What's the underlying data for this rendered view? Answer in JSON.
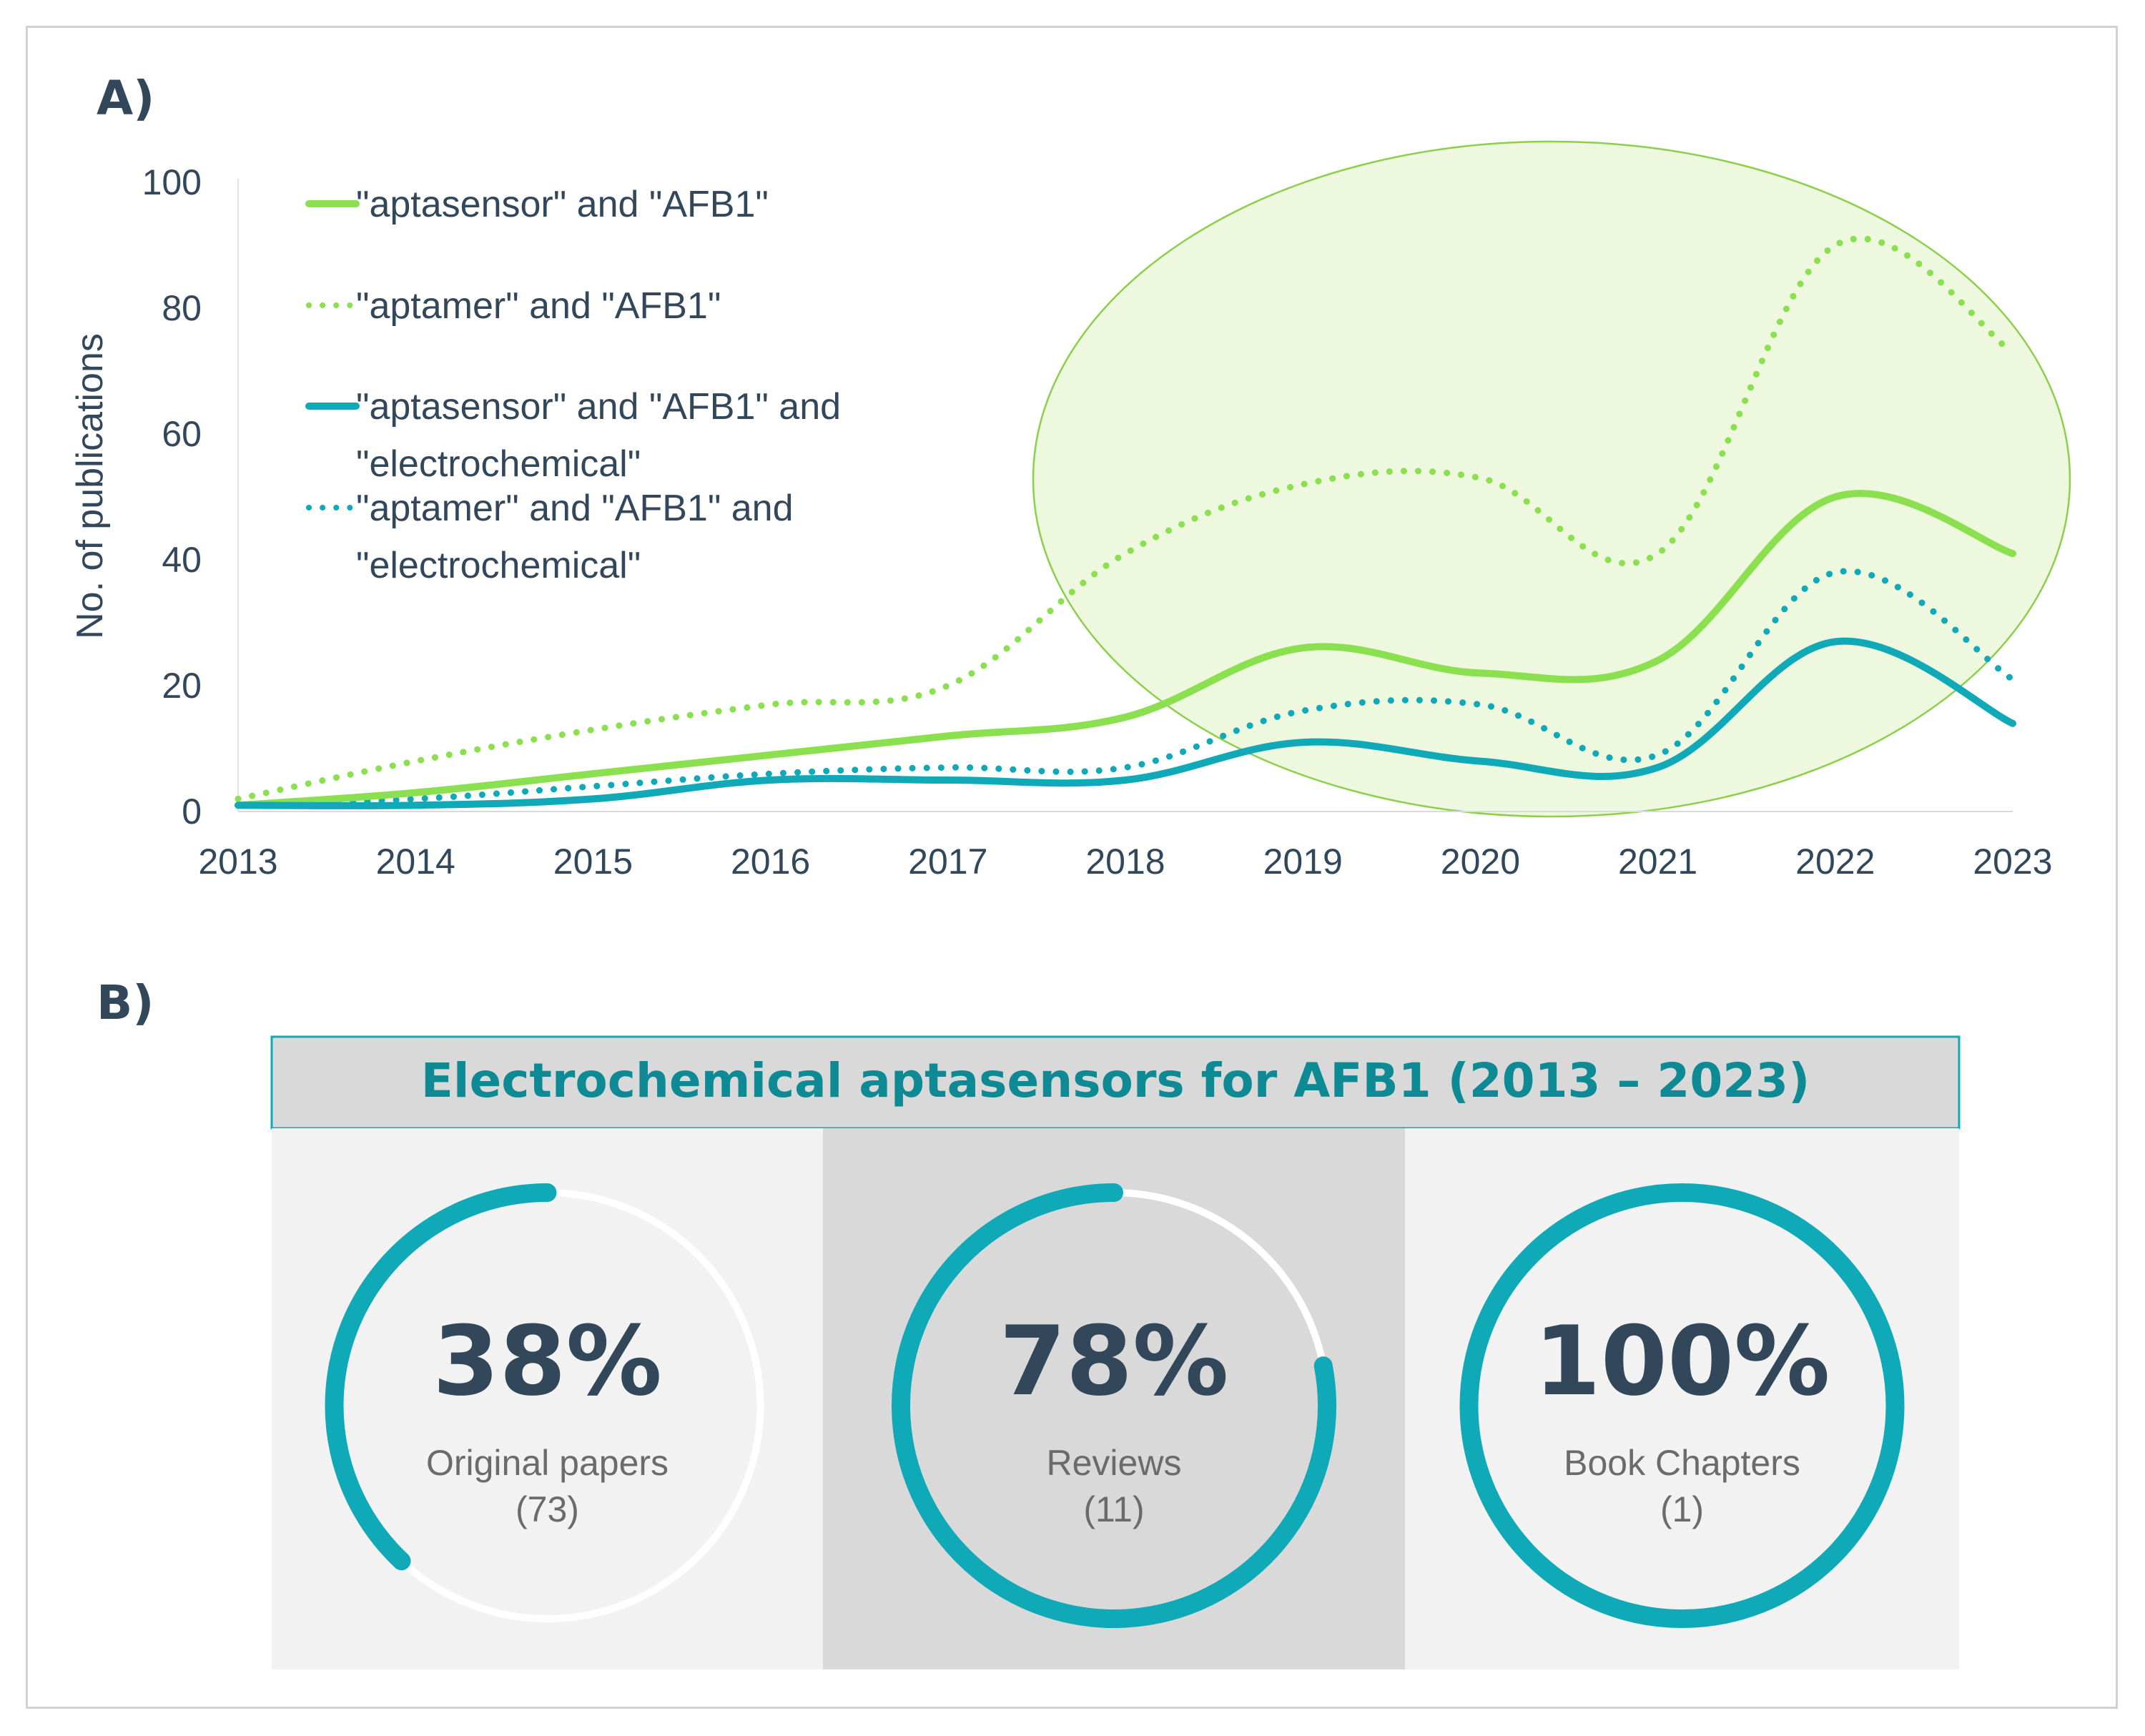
{
  "colors": {
    "green": "#8ae04f",
    "teal": "#10a9b8",
    "text": "#33475b",
    "panel_light": "#f2f2f2",
    "panel_dark": "#d9d9d9",
    "ellipse_fill": "#eef8de",
    "ellipse_stroke": "#8ccf4a",
    "header_text": "#0e8a94"
  },
  "panel_a": {
    "label": "A)"
  },
  "panel_b": {
    "label": "B)"
  },
  "chart_data": {
    "type": "line",
    "title": "",
    "xlabel": "",
    "ylabel": "No. of publications",
    "x": [
      2013,
      2014,
      2015,
      2016,
      2017,
      2018,
      2019,
      2020,
      2021,
      2022,
      2023
    ],
    "ylim": [
      0,
      100
    ],
    "yticks": [
      0,
      20,
      40,
      60,
      80,
      100
    ],
    "series": [
      {
        "name": "\"aptasensor\" and \"AFB1\"",
        "style": "solid",
        "color": "#8ae04f",
        "values": [
          1,
          3,
          6,
          9,
          12,
          15,
          26,
          22,
          24,
          50,
          41
        ]
      },
      {
        "name": "\"aptamer\" and \"AFB1\"",
        "style": "dotted",
        "color": "#8ae04f",
        "values": [
          2,
          8,
          13,
          17,
          20,
          41,
          52,
          53,
          41,
          90,
          73
        ]
      },
      {
        "name": "\"aptasensor\" and \"AFB1\" and \"electrochemical\"",
        "style": "solid",
        "color": "#10a9b8",
        "values": [
          1,
          1,
          2,
          5,
          5,
          5,
          11,
          8,
          7,
          27,
          14
        ]
      },
      {
        "name": "\"aptamer\" and \"AFB1\" and \"electrochemical\"",
        "style": "dotted",
        "color": "#10a9b8",
        "values": [
          1,
          2,
          4,
          6,
          7,
          7,
          16,
          17,
          9,
          38,
          21
        ]
      }
    ],
    "legend_lines": [
      [
        "\"aptasensor\" and \"AFB1\""
      ],
      [
        "\"aptamer\" and \"AFB1\""
      ],
      [
        "\"aptasensor\" and \"AFB1\" and",
        "\"electrochemical\""
      ],
      [
        "\"aptamer\" and \"AFB1\" and",
        "\"electrochemical\""
      ]
    ],
    "legend_position": "top-left",
    "highlight": "ellipse over 2018-2023"
  },
  "summary": {
    "title": "Electrochemical aptasensors for AFB1 (2013 – 2023)",
    "cards": [
      {
        "percent": 38,
        "percent_label": "38%",
        "caption": "Original papers",
        "count_label": "(73)"
      },
      {
        "percent": 78,
        "percent_label": "78%",
        "caption": "Reviews",
        "count_label": "(11)"
      },
      {
        "percent": 100,
        "percent_label": "100%",
        "caption": "Book Chapters",
        "count_label": "(1)"
      }
    ]
  }
}
